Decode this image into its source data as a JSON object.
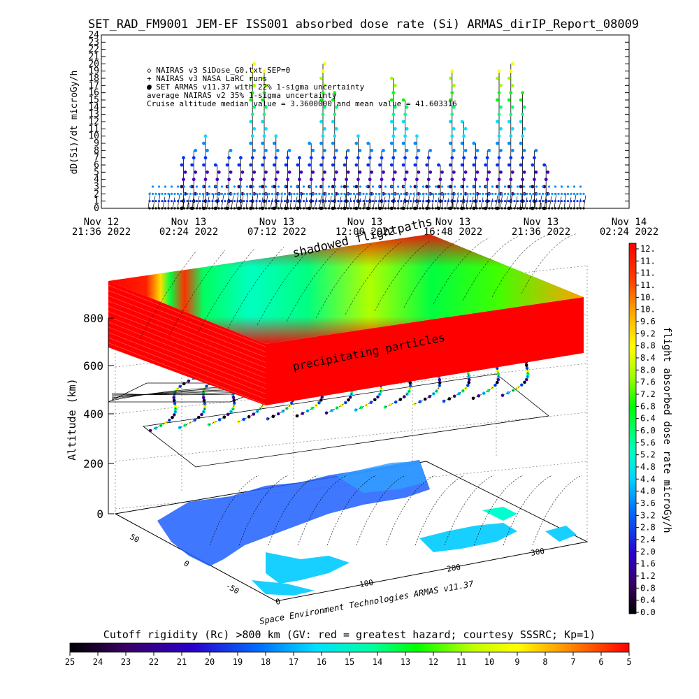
{
  "title": "SET_RAD_FM9001  JEM-EF ISS001 absorbed dose rate (Si) ARMAS_dirIP_Report_08009",
  "top_chart": {
    "ylabel": "dD(Si)/dt microGy/h",
    "y_ticks": [
      "0",
      "1",
      "2",
      "3",
      "4",
      "5",
      "6",
      "7",
      "8",
      "9",
      "10",
      "11",
      "12",
      "13",
      "14",
      "15",
      "16",
      "17",
      "18",
      "19",
      "20",
      "21",
      "22",
      "23",
      "24"
    ],
    "x_ticks": [
      {
        "line1": "Nov 12",
        "line2": "21:36 2022"
      },
      {
        "line1": "Nov 13",
        "line2": "02:24 2022"
      },
      {
        "line1": "Nov 13",
        "line2": "07:12 2022"
      },
      {
        "line1": "Nov 13",
        "line2": "12:00 2022"
      },
      {
        "line1": "Nov 13",
        "line2": "16:48 2022"
      },
      {
        "line1": "Nov 13",
        "line2": "21:36 2022"
      },
      {
        "line1": "Nov 14",
        "line2": "02:24 2022"
      }
    ],
    "legend": [
      "◇ NAIRAS v3 SiDose_G0.txt SEP=0",
      "+ NAIRAS v3 NASA LaRC runs",
      "● SET ARMAS v11.37 with 22% 1-sigma uncertainty",
      "  average NAIRAS v2 35% 1-sigma uncertainty",
      "  Cruise altitude median value = 3.3600000 and mean value = 41.603316"
    ]
  },
  "bottom_chart": {
    "annotation_top": "shadowed flightpaths",
    "annotation_mid": "precipitating particles",
    "alt_label": "Altitude (km)",
    "alt_ticks": [
      "0",
      "200",
      "400",
      "600",
      "800"
    ],
    "lat_ticks": [
      "50",
      "0",
      "-50"
    ],
    "lon_ticks": [
      "0",
      "100",
      "200",
      "300"
    ],
    "credit": "Space Environment Technologies ARMAS v11.37"
  },
  "colorbar_right": {
    "label": "flight absorbed dose rate microGy/h",
    "ticks": [
      "12.",
      "11.",
      "11.",
      "11.",
      "10.",
      "10.",
      "9.6",
      "9.2",
      "8.8",
      "8.4",
      "8.0",
      "7.6",
      "7.2",
      "6.8",
      "6.4",
      "6.0",
      "5.6",
      "5.2",
      "4.8",
      "4.4",
      "4.0",
      "3.6",
      "3.2",
      "2.8",
      "2.4",
      "2.0",
      "1.6",
      "1.2",
      "0.8",
      "0.4",
      "0.0"
    ]
  },
  "colorbar_bottom": {
    "title": "Cutoff rigidity (Rc) >800 km (GV: red = greatest hazard; courtesy SSSRC; Kp=1)",
    "ticks": [
      "25",
      "24",
      "23",
      "22",
      "21",
      "20",
      "19",
      "18",
      "17",
      "16",
      "15",
      "14",
      "13",
      "12",
      "11",
      "10",
      "9",
      "8",
      "7",
      "6",
      "5"
    ]
  },
  "chart_data": {
    "type": "scatter",
    "title": "SET_RAD_FM9001  JEM-EF ISS001 absorbed dose rate (Si) ARMAS_dirIP_Report_08009",
    "xlabel": "",
    "ylabel": "dD(Si)/dt microGy/h",
    "ylim": [
      0,
      24
    ],
    "xlim": [
      "Nov 12 21:36 2022",
      "Nov 14 02:24 2022"
    ],
    "grid": false,
    "series": [
      {
        "name": "SET ARMAS v11.37 with 22% 1-sigma uncertainty",
        "x": [
          2.5,
          3.2,
          4.0,
          4.8,
          5.6,
          6.4,
          7.2,
          8.0,
          8.8,
          9.6,
          10.4,
          11.2,
          12.0,
          12.8,
          13.6,
          14.4,
          15.2,
          16.0,
          16.8,
          17.6,
          18.4,
          19.2,
          20.0,
          20.8,
          21.6,
          22.4,
          23.2,
          24.0,
          24.8,
          25.6,
          26.4,
          27.2
        ],
        "y": [
          7,
          8,
          10,
          6,
          8,
          7,
          20,
          19,
          10,
          8,
          7,
          9,
          20,
          16,
          8,
          10,
          9,
          8,
          18,
          15,
          10,
          8,
          6,
          19,
          12,
          9,
          8,
          19,
          20,
          16,
          8,
          6
        ]
      }
    ],
    "colors": {
      "red": "#ff0000",
      "green": "#00ff00",
      "blue": "#0060ff",
      "black": "#000000"
    }
  }
}
